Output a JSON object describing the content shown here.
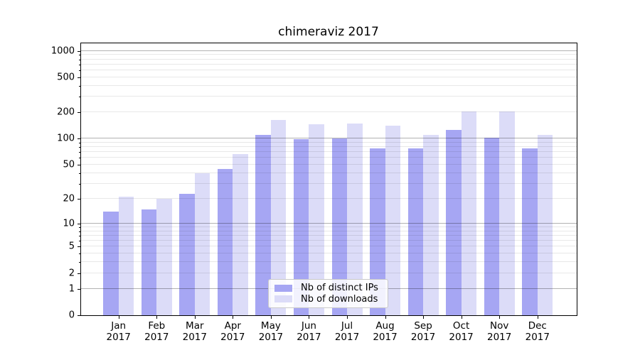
{
  "title": "chimeraviz 2017",
  "chart_data": {
    "type": "bar",
    "title": "chimeraviz 2017",
    "categories": [
      "Jan 2017",
      "Feb 2017",
      "Mar 2017",
      "Apr 2017",
      "May 2017",
      "Jun 2017",
      "Jul 2017",
      "Aug 2017",
      "Sep 2017",
      "Oct 2017",
      "Nov 2017",
      "Dec 2017"
    ],
    "series": [
      {
        "name": "Nb of distinct IPs",
        "color": "#a6a6f3",
        "values": [
          14,
          15,
          23,
          45,
          110,
          98,
          100,
          77,
          78,
          127,
          103,
          78
        ]
      },
      {
        "name": "Nb of downloads",
        "color": "#dcdcf8",
        "values": [
          21,
          20,
          40,
          66,
          164,
          147,
          149,
          142,
          111,
          205,
          205,
          111
        ]
      }
    ],
    "yscale": "log1p",
    "y_ticks": [
      0,
      1,
      2,
      5,
      10,
      20,
      50,
      100,
      200,
      500,
      1000
    ],
    "ylim": [
      0,
      1240
    ],
    "xlabel": "",
    "ylabel": "",
    "grid": "on",
    "legend_position": "lower center",
    "grid_minor_color": "#e8e8e8",
    "grid_major_color": "#b3b3b3"
  }
}
